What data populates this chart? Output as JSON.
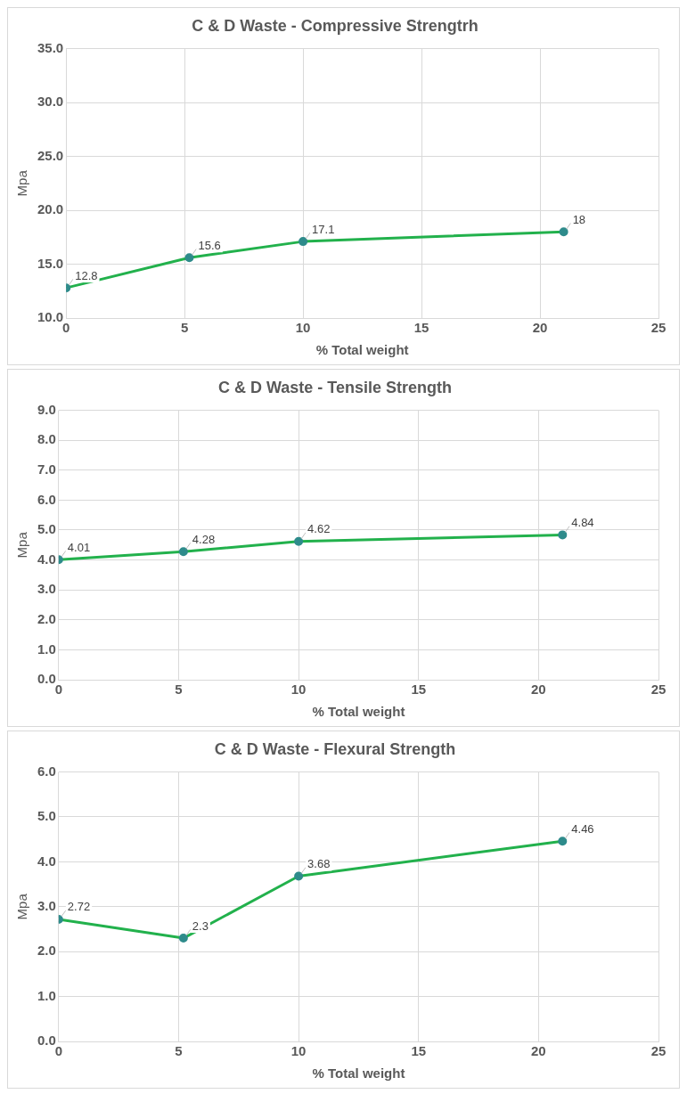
{
  "chart_data": [
    {
      "type": "line",
      "title": "C & D Waste - Compressive Strengtrh",
      "xlabel": "% Total weight",
      "ylabel": "Mpa",
      "x": [
        0,
        5.2,
        10,
        21
      ],
      "series": [
        {
          "color": "#22b14c",
          "values": [
            12.8,
            15.6,
            17.1,
            18
          ]
        }
      ],
      "xlim": [
        0,
        25
      ],
      "xticks": [
        0,
        5,
        10,
        15,
        20,
        25
      ],
      "ylim": [
        10,
        35
      ],
      "yticks": [
        {
          "value": 10,
          "label": "10.0"
        },
        {
          "value": 15,
          "label": "15.0"
        },
        {
          "value": 20,
          "label": "20.0"
        },
        {
          "value": 25,
          "label": "25.0"
        },
        {
          "value": 30,
          "label": "30.0"
        },
        {
          "value": 35,
          "label": "35.0"
        }
      ],
      "grid": true,
      "marker": "circle",
      "data_labels": true
    },
    {
      "type": "line",
      "title": "C & D Waste - Tensile Strength",
      "xlabel": "% Total weight",
      "ylabel": "Mpa",
      "x": [
        0,
        5.2,
        10,
        21
      ],
      "series": [
        {
          "color": "#22b14c",
          "values": [
            4.01,
            4.28,
            4.62,
            4.84
          ]
        }
      ],
      "xlim": [
        0,
        25
      ],
      "xticks": [
        0,
        5,
        10,
        15,
        20,
        25
      ],
      "ylim": [
        0,
        9
      ],
      "yticks": [
        {
          "value": 0,
          "label": "0.0"
        },
        {
          "value": 1,
          "label": "1.0"
        },
        {
          "value": 2,
          "label": "2.0"
        },
        {
          "value": 3,
          "label": "3.0"
        },
        {
          "value": 4,
          "label": "4.0"
        },
        {
          "value": 5,
          "label": "5.0"
        },
        {
          "value": 6,
          "label": "6.0"
        },
        {
          "value": 7,
          "label": "7.0"
        },
        {
          "value": 8,
          "label": "8.0"
        },
        {
          "value": 9,
          "label": "9.0"
        }
      ],
      "grid": true,
      "marker": "circle",
      "data_labels": true
    },
    {
      "type": "line",
      "title": "C & D Waste - Flexural Strength",
      "xlabel": "% Total weight",
      "ylabel": "Mpa",
      "x": [
        0,
        5.2,
        10,
        21
      ],
      "series": [
        {
          "color": "#22b14c",
          "values": [
            2.72,
            2.3,
            3.68,
            4.46
          ]
        }
      ],
      "xlim": [
        0,
        25
      ],
      "xticks": [
        0,
        5,
        10,
        15,
        20,
        25
      ],
      "ylim": [
        0,
        6
      ],
      "yticks": [
        {
          "value": 0,
          "label": "0.0"
        },
        {
          "value": 1,
          "label": "1.0"
        },
        {
          "value": 2,
          "label": "2.0"
        },
        {
          "value": 3,
          "label": "3.0"
        },
        {
          "value": 4,
          "label": "4.0"
        },
        {
          "value": 5,
          "label": "5.0"
        },
        {
          "value": 6,
          "label": "6.0"
        }
      ],
      "grid": true,
      "marker": "circle",
      "data_labels": true
    }
  ]
}
